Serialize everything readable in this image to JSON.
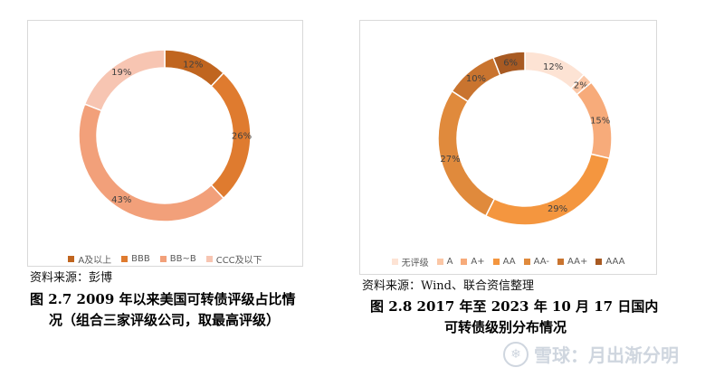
{
  "colors": {
    "background": "#ffffff",
    "panel_border": "#d9d9d9",
    "label_text": "#404040"
  },
  "chart_data": [
    {
      "type": "pie",
      "donut": true,
      "legend_position": "bottom",
      "categories": [
        "A及以上",
        "BBB",
        "BB~B",
        "CCC及以下"
      ],
      "values": [
        12,
        26,
        43,
        19
      ],
      "data_labels": [
        "12%",
        "26%",
        "43%",
        "19%"
      ],
      "colors": [
        "#c0651f",
        "#df7b2f",
        "#f2a07a",
        "#f7c5b2"
      ],
      "title": "",
      "xlabel": "",
      "ylabel": ""
    },
    {
      "type": "pie",
      "donut": true,
      "legend_position": "bottom",
      "categories": [
        "无评级",
        "A",
        "A+",
        "AA",
        "AA-",
        "AA+",
        "AAA"
      ],
      "values": [
        12,
        2,
        15,
        29,
        27,
        10,
        6
      ],
      "data_labels": [
        "12%",
        "2%",
        "15%",
        "29%",
        "27%",
        "10%",
        "6%"
      ],
      "colors": [
        "#fde3d4",
        "#fbc7a6",
        "#f7ab7a",
        "#f4963f",
        "#e08a3c",
        "#c9742f",
        "#a85a22"
      ],
      "title": "",
      "xlabel": "",
      "ylabel": ""
    }
  ],
  "left": {
    "source": "资料来源：彭博",
    "caption_line1": "图 2.7   2009 年以来美国可转债评级占比情",
    "caption_line2": "况（组合三家评级公司，取最高评级）"
  },
  "right": {
    "source": "资料来源：Wind、联合资信整理",
    "caption_line1": "图 2.8   2017 年至 2023 年 10 月 17 日国内",
    "caption_line2": "可转债级别分布情况"
  },
  "watermark": {
    "icon": "snowball-logo-icon",
    "text": "雪球：月出渐分明"
  }
}
